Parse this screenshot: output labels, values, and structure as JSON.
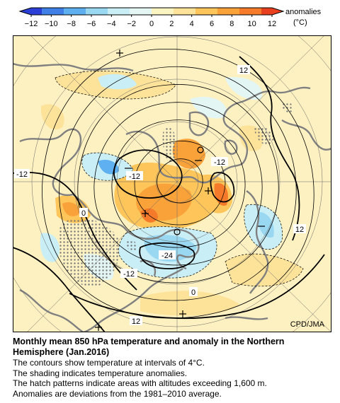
{
  "colorbar": {
    "ticks": [
      "−12",
      "−10",
      "−8",
      "−6",
      "−4",
      "−2",
      "0",
      "2",
      "4",
      "6",
      "8",
      "10",
      "12"
    ],
    "label": "anomalies",
    "unit": "(°C)",
    "colors": [
      "#2b3fd6",
      "#3f7fe6",
      "#5fb0f0",
      "#9ad8f2",
      "#c9eef5",
      "#e4f6f4",
      "#fbf3c0",
      "#fde39a",
      "#fdc55a",
      "#f9a23a",
      "#f57a2a",
      "#e8401f"
    ]
  },
  "map": {
    "contour_labels": [
      {
        "id": "n12-upper-right",
        "text": "12"
      },
      {
        "id": "n12-left",
        "text": "-12"
      },
      {
        "id": "n12-center",
        "text": "-12"
      },
      {
        "id": "n12-right",
        "text": "-12"
      },
      {
        "id": "zero-left",
        "text": "0"
      },
      {
        "id": "n24",
        "text": "-24"
      },
      {
        "id": "n12-lower",
        "text": "-12"
      },
      {
        "id": "zero-bottom",
        "text": "0"
      },
      {
        "id": "p12-right",
        "text": "12"
      },
      {
        "id": "p12-bottom",
        "text": "12"
      }
    ],
    "credit": "CPD/JMA"
  },
  "caption": {
    "title_line1": "Monthly mean 850 hPa temperature and anomaly in the Northern",
    "title_line2": "Hemisphere (Jan.2016)",
    "lines": [
      "The contours show temperature at intervals of 4°C.",
      "The shading indicates temperature anomalies.",
      "The hatch patterns indicate areas with altitudes exceeding 1,600 m.",
      "Anomalies are deviations from the 1981–2010 average."
    ]
  }
}
